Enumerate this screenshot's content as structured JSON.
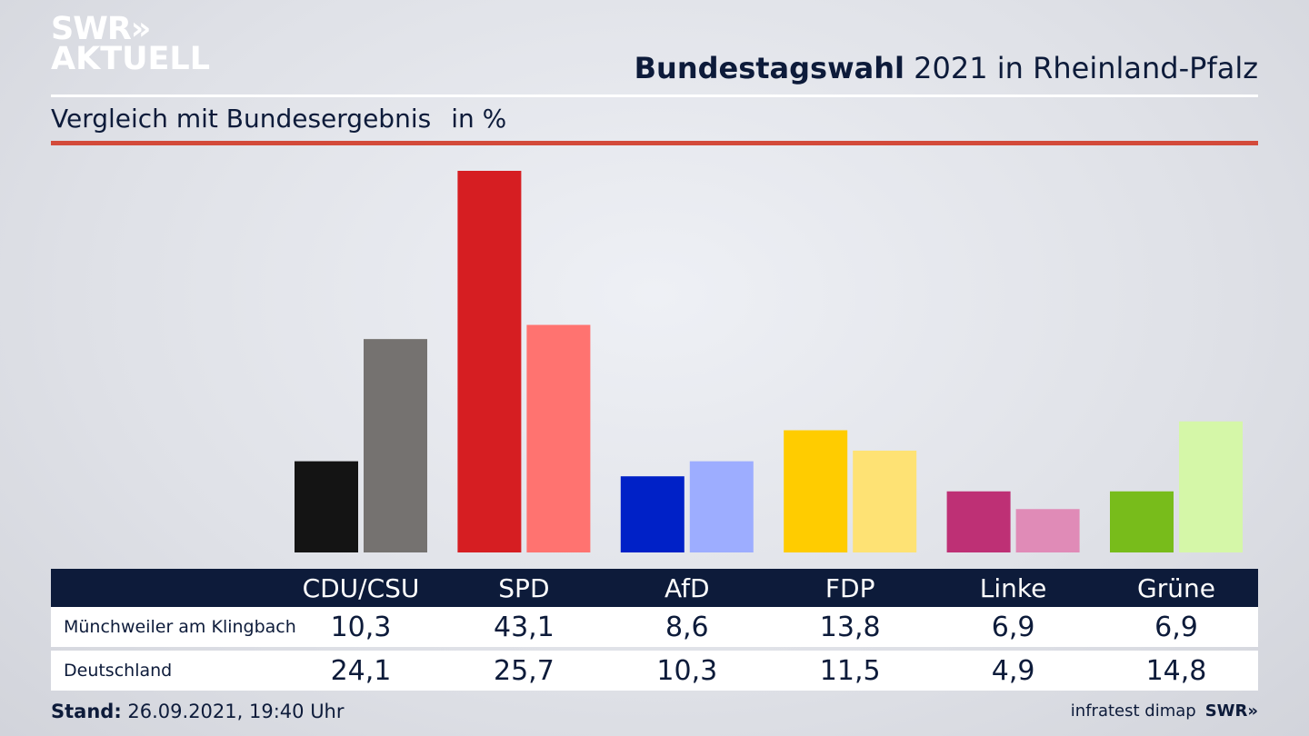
{
  "logo": {
    "line1": "SWR»",
    "line2": "AKTUELL"
  },
  "header": {
    "title_bold": "Bundestagswahl",
    "title_rest": "2021 in Rheinland-Pfalz",
    "subtitle": "Vergleich mit Bundesergebnis",
    "unit": "in %"
  },
  "chart_data": {
    "type": "bar",
    "categories": [
      "CDU/CSU",
      "SPD",
      "AfD",
      "FDP",
      "Linke",
      "Grüne"
    ],
    "series": [
      {
        "name": "Münchweiler am Klingbach",
        "values": [
          10.3,
          43.1,
          8.6,
          13.8,
          6.9,
          6.9
        ]
      },
      {
        "name": "Deutschland",
        "values": [
          24.1,
          25.7,
          10.3,
          11.5,
          4.9,
          14.8
        ]
      }
    ],
    "ylim": [
      0,
      43.1
    ],
    "grid": false,
    "colors": [
      [
        "#141414",
        "#757270"
      ],
      [
        "#d61e22",
        "#ff7370"
      ],
      [
        "#0021c7",
        "#9dadff"
      ],
      [
        "#ffcc00",
        "#fee274"
      ],
      [
        "#be3075",
        "#e08bb7"
      ],
      [
        "#78bc1b",
        "#d5f7a8"
      ]
    ]
  },
  "table": {
    "rows": [
      {
        "label": "Münchweiler am Klingbach",
        "values": [
          "10,3",
          "43,1",
          "8,6",
          "13,8",
          "6,9",
          "6,9"
        ]
      },
      {
        "label": "Deutschland",
        "values": [
          "24,1",
          "25,7",
          "10,3",
          "11,5",
          "4,9",
          "14,8"
        ]
      }
    ]
  },
  "footer": {
    "stand_label": "Stand:",
    "stand_value": "26.09.2021, 19:40 Uhr",
    "source": "infratest dimap",
    "brand": "SWR»"
  }
}
